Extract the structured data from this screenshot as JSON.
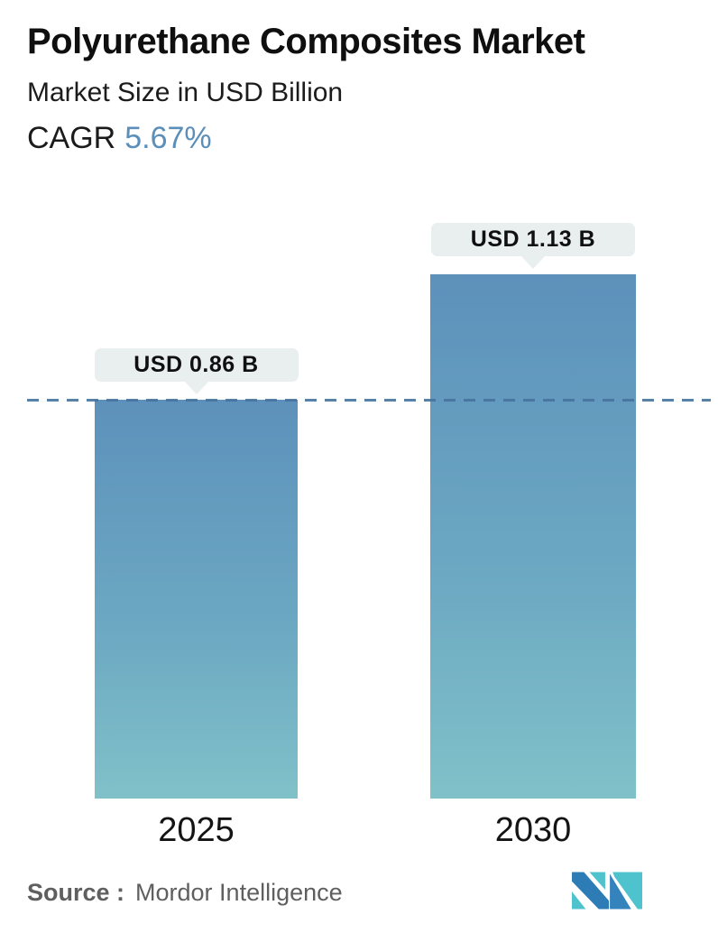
{
  "header": {
    "title": "Polyurethane Composites Market",
    "subtitle": "Market Size in USD Billion",
    "cagr_label": "CAGR",
    "cagr_value": "5.67%"
  },
  "chart": {
    "bars": [
      {
        "year": "2025",
        "value_label": "USD 0.86 B"
      },
      {
        "year": "2030",
        "value_label": "USD 1.13 B"
      }
    ]
  },
  "chart_data": {
    "type": "bar",
    "categories": [
      "2025",
      "2030"
    ],
    "values": [
      0.86,
      1.13
    ],
    "value_labels": [
      "USD 0.86 B",
      "USD 1.13 B"
    ],
    "title": "Polyurethane Composites Market",
    "subtitle": "Market Size in USD Billion",
    "cagr": "5.67%",
    "unit": "USD Billion",
    "xlabel": "",
    "ylabel": "Market Size in USD Billion",
    "ylim": [
      0,
      1.13
    ],
    "grid": false,
    "legend": false,
    "reference_line": {
      "style": "dashed",
      "at_value": 0.86
    }
  },
  "footer": {
    "source_label": "Source :",
    "source_name": "Mordor Intelligence",
    "logo": "mordor-intelligence-logo"
  },
  "colors": {
    "accent_blue": "#5b8fba",
    "bar_gradient_top": "#5d91bb",
    "bar_gradient_bottom": "#80c1c9",
    "dashed_line": "#46739e",
    "bubble_bg": "#e9eeee",
    "source_text": "#5f5f5f",
    "logo_teal": "#4fc3cd",
    "logo_blue": "#2e7cb5"
  }
}
